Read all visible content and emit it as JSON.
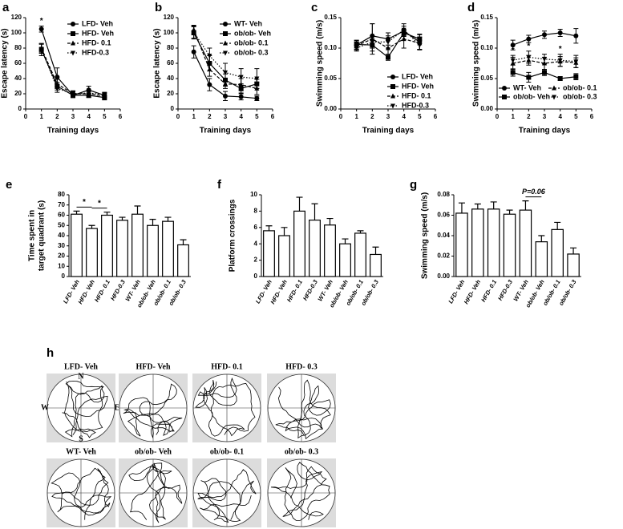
{
  "chart_data": [
    {
      "type": "line",
      "label": "a",
      "xlabel": "Training days",
      "ylabel": "Escape latency (s)",
      "x": [
        1,
        2,
        3,
        4,
        5
      ],
      "xlim": [
        0,
        6
      ],
      "xticks": [
        0,
        1,
        2,
        3,
        4,
        5,
        6
      ],
      "ylim": [
        0,
        120
      ],
      "yticks": [
        0,
        20,
        40,
        60,
        80,
        100,
        120
      ],
      "legend": "upper right",
      "annotations": [
        "*"
      ],
      "series": [
        {
          "name": "LFD- Veh",
          "color": "#000000",
          "marker": "circle",
          "linestyle": "solid",
          "values": [
            105,
            42,
            18,
            25,
            18
          ],
          "errors": [
            4,
            12,
            3,
            5,
            3
          ]
        },
        {
          "name": "HFD- Veh",
          "color": "#000000",
          "marker": "square",
          "linestyle": "solid",
          "values": [
            78,
            30,
            18,
            18,
            15
          ],
          "errors": [
            8,
            5,
            3,
            3,
            3
          ]
        },
        {
          "name": "HFD- 0.1",
          "color": "#000000",
          "marker": "triangle",
          "linestyle": "dashed",
          "values": [
            80,
            33,
            20,
            20,
            17
          ],
          "errors": [
            6,
            6,
            3,
            3,
            3
          ]
        },
        {
          "name": "HFD-0.3",
          "color": "#000000",
          "marker": "triangle-down",
          "linestyle": "dotted",
          "values": [
            79,
            27,
            20,
            21,
            19
          ],
          "errors": [
            6,
            5,
            4,
            3,
            3
          ]
        }
      ]
    },
    {
      "type": "line",
      "label": "b",
      "xlabel": "Training days",
      "ylabel": "Escape latency (s)",
      "x": [
        1,
        2,
        3,
        4,
        5
      ],
      "xlim": [
        0,
        6
      ],
      "xticks": [
        0,
        1,
        2,
        3,
        4,
        5,
        6
      ],
      "ylim": [
        0,
        120
      ],
      "yticks": [
        0,
        20,
        40,
        60,
        80,
        100,
        120
      ],
      "legend": "upper right",
      "annotations": [],
      "series": [
        {
          "name": "WT- Veh",
          "color": "#000000",
          "marker": "circle",
          "linestyle": "solid",
          "values": [
            75,
            32,
            17,
            16,
            14
          ],
          "errors": [
            8,
            8,
            6,
            4,
            3
          ]
        },
        {
          "name": "ob/ob- Veh",
          "color": "#000000",
          "marker": "square",
          "linestyle": "solid",
          "values": [
            100,
            60,
            38,
            27,
            33
          ],
          "errors": [
            8,
            10,
            8,
            6,
            6
          ]
        },
        {
          "name": "ob/ob- 0.1",
          "color": "#000000",
          "marker": "triangle",
          "linestyle": "dashed",
          "values": [
            104,
            52,
            33,
            32,
            27
          ],
          "errors": [
            6,
            9,
            6,
            8,
            8
          ]
        },
        {
          "name": "ob/ob- 0.3",
          "color": "#000000",
          "marker": "triangle-down",
          "linestyle": "dotted",
          "values": [
            101,
            70,
            48,
            42,
            40
          ],
          "errors": [
            8,
            10,
            12,
            11,
            13
          ]
        }
      ]
    },
    {
      "type": "line",
      "label": "c",
      "xlabel": "Training days",
      "ylabel": "Swimming speed (m/s)",
      "x": [
        1,
        2,
        3,
        4,
        5
      ],
      "xlim": [
        0,
        6
      ],
      "xticks": [
        0,
        1,
        2,
        3,
        4,
        5,
        6
      ],
      "ylim": [
        0,
        0.15
      ],
      "yticks": [
        {
          "value": 0,
          "label": "0.00"
        },
        {
          "value": 0.05,
          "label": "0.05"
        },
        {
          "value": 0.1,
          "label": "0.10"
        },
        {
          "value": 0.15,
          "label": "0.15"
        }
      ],
      "legend": "lower right",
      "annotations": [],
      "series": [
        {
          "name": "LFD- Veh",
          "color": "#000000",
          "marker": "circle",
          "linestyle": "solid",
          "values": [
            0.105,
            0.12,
            0.115,
            0.128,
            0.11
          ],
          "errors": [
            0.008,
            0.02,
            0.01,
            0.008,
            0.012
          ]
        },
        {
          "name": "HFD- Veh",
          "color": "#000000",
          "marker": "square",
          "linestyle": "solid",
          "values": [
            0.106,
            0.105,
            0.085,
            0.125,
            0.115
          ],
          "errors": [
            0.006,
            0.01,
            0.005,
            0.006,
            0.008
          ]
        },
        {
          "name": "HFD- 0.1",
          "color": "#000000",
          "marker": "triangle",
          "linestyle": "dashed",
          "values": [
            0.104,
            0.115,
            0.1,
            0.115,
            0.108
          ],
          "errors": [
            0.006,
            0.025,
            0.012,
            0.015,
            0.01
          ]
        },
        {
          "name": "HFD-0.3",
          "color": "#000000",
          "marker": "triangle-down",
          "linestyle": "dotted",
          "values": [
            0.1,
            0.11,
            0.11,
            0.13,
            0.105
          ],
          "errors": [
            0.005,
            0.01,
            0.01,
            0.01,
            0.008
          ]
        }
      ]
    },
    {
      "type": "line",
      "label": "d",
      "xlabel": "Training days",
      "ylabel": "Swimming speed (m/s)",
      "x": [
        1,
        2,
        3,
        4,
        5
      ],
      "xlim": [
        0,
        6
      ],
      "xticks": [
        0,
        1,
        2,
        3,
        4,
        5,
        6
      ],
      "ylim": [
        0,
        0.15
      ],
      "yticks": [
        {
          "value": 0,
          "label": "0.00"
        },
        {
          "value": 0.05,
          "label": "0.05"
        },
        {
          "value": 0.1,
          "label": "0.10"
        },
        {
          "value": 0.15,
          "label": "0.15"
        }
      ],
      "legend": "lower center",
      "annotations": [
        "*",
        "*",
        "*"
      ],
      "series": [
        {
          "name": "WT- Veh",
          "color": "#000000",
          "marker": "circle",
          "linestyle": "solid",
          "values": [
            0.105,
            0.115,
            0.122,
            0.125,
            0.12
          ],
          "errors": [
            0.008,
            0.006,
            0.006,
            0.006,
            0.012
          ]
        },
        {
          "name": "ob/ob- Veh",
          "color": "#000000",
          "marker": "square",
          "linestyle": "solid",
          "values": [
            0.06,
            0.052,
            0.06,
            0.05,
            0.053
          ],
          "errors": [
            0.006,
            0.008,
            0.005,
            0.003,
            0.005
          ]
        },
        {
          "name": "ob/ob- 0.1",
          "color": "#000000",
          "marker": "triangle",
          "linestyle": "dashed",
          "values": [
            0.075,
            0.08,
            0.075,
            0.078,
            0.076
          ],
          "errors": [
            0.01,
            0.008,
            0.01,
            0.008,
            0.008
          ]
        },
        {
          "name": "ob/ob- 0.3",
          "color": "#000000",
          "marker": "triangle-down",
          "linestyle": "dotted",
          "values": [
            0.08,
            0.085,
            0.082,
            0.08,
            0.078
          ],
          "errors": [
            0.008,
            0.01,
            0.008,
            0.01,
            0.01
          ]
        }
      ]
    },
    {
      "type": "bar",
      "label": "e",
      "ylabel": [
        "Time spent in",
        "target quadrant (s)"
      ],
      "categories": [
        "LFD- Veh",
        "HFD- Veh",
        "HFD- 0.1",
        "HFD-0.3",
        "WT- Veh",
        "ob/ob- Veh",
        "ob/ob- 0.1",
        "ob/ob- 0.3"
      ],
      "values": [
        61,
        47,
        60,
        55,
        61,
        50,
        54,
        31
      ],
      "errors": [
        3,
        3,
        3,
        3,
        8,
        6,
        4,
        5
      ],
      "color": "#ffffff",
      "ylim": [
        0,
        80
      ],
      "yticks": [
        0,
        10,
        20,
        30,
        40,
        50,
        60,
        70,
        80
      ],
      "annotations": [
        "*",
        "*"
      ]
    },
    {
      "type": "bar",
      "label": "f",
      "ylabel": [
        "Platform crossings"
      ],
      "categories": [
        "LFD- Veh",
        "HFD- Veh",
        "HFD- 0.1",
        "HFD-0.3",
        "WT- Veh",
        "ob/ob- Veh",
        "ob/ob- 0.1",
        "ob/ob- 0.3"
      ],
      "values": [
        5.6,
        5.0,
        8.0,
        6.9,
        6.3,
        4.0,
        5.3,
        2.7
      ],
      "errors": [
        0.6,
        1.0,
        1.7,
        2.0,
        0.8,
        0.6,
        0.3,
        0.9
      ],
      "color": "#ffffff",
      "ylim": [
        0,
        10
      ],
      "yticks": [
        0,
        2,
        4,
        6,
        8,
        10
      ],
      "annotations": []
    },
    {
      "type": "bar",
      "label": "g",
      "ylabel": [
        "Swimming speed (m/s)"
      ],
      "categories": [
        "LFD- Veh",
        "HFD- Veh",
        "HFD- 0.1",
        "HFD-0.3",
        "WT- Veh",
        "ob/ob- Veh",
        "ob/ob- 0.1",
        "ob/ob- 0.3"
      ],
      "values": [
        0.062,
        0.066,
        0.066,
        0.061,
        0.065,
        0.034,
        0.046,
        0.022
      ],
      "errors": [
        0.01,
        0.005,
        0.007,
        0.004,
        0.009,
        0.006,
        0.007,
        0.006
      ],
      "color": "#ffffff",
      "ylim": [
        0,
        0.08
      ],
      "yticks": [
        {
          "value": 0,
          "label": "0.00"
        },
        {
          "value": 0.02,
          "label": "0.02"
        },
        {
          "value": 0.04,
          "label": "0.04"
        },
        {
          "value": 0.06,
          "label": "0.06"
        },
        {
          "value": 0.08,
          "label": "0.08"
        }
      ],
      "annotations": [
        "P=0.06"
      ]
    }
  ],
  "track_panel": {
    "label": "h",
    "compass": [
      "N",
      "W",
      "E",
      "S"
    ],
    "titles": [
      "LFD- Veh",
      "HFD- Veh",
      "HFD- 0.1",
      "HFD- 0.3",
      "WT- Veh",
      "ob/ob- Veh",
      "ob/ob- 0.1",
      "ob/ob- 0.3"
    ]
  }
}
